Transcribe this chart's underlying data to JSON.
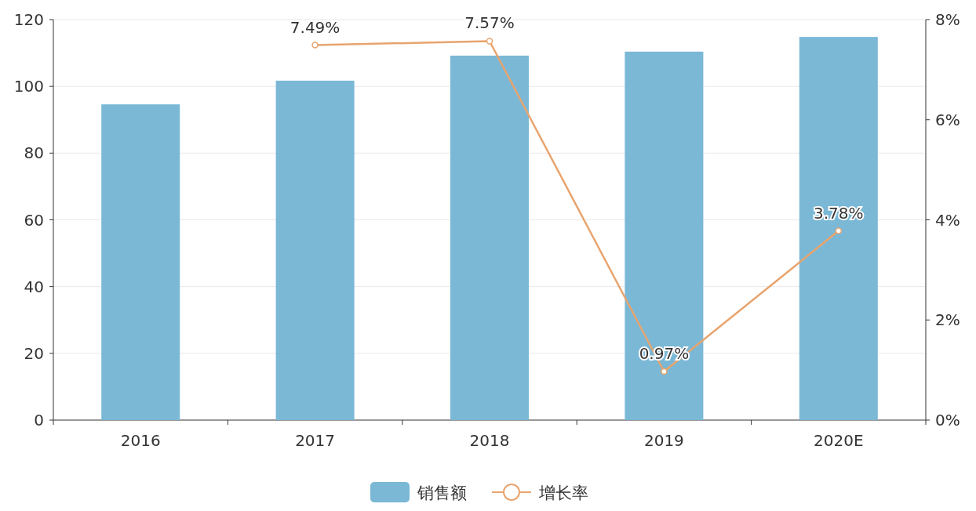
{
  "chart_data": {
    "type": "bar",
    "categories": [
      "2016",
      "2017",
      "2018",
      "2019",
      "2020E"
    ],
    "series": [
      {
        "name": "销售额",
        "color": "#7ab8d6",
        "values": [
          94.6,
          101.7,
          109.2,
          110.4,
          114.8
        ]
      },
      {
        "name": "增长率",
        "type": "line",
        "axis": "y2",
        "color": "#e8a46e",
        "values": [
          null,
          7.49,
          7.57,
          0.97,
          3.78
        ],
        "value_labels": [
          null,
          "7.49%",
          "7.57%",
          "0.97%",
          "3.78%"
        ]
      }
    ],
    "ylim": [
      0,
      120
    ],
    "yticks": [
      0,
      20,
      40,
      60,
      80,
      100,
      120
    ],
    "y2lim": [
      0,
      8
    ],
    "y2ticks": [
      {
        "value": 0,
        "label": "0%"
      },
      {
        "value": 2,
        "label": "2%"
      },
      {
        "value": 4,
        "label": "4%"
      },
      {
        "value": 6,
        "label": "6%"
      },
      {
        "value": 8,
        "label": "8%"
      }
    ],
    "grid": "y",
    "legend": "bottom",
    "marker": "circle"
  }
}
